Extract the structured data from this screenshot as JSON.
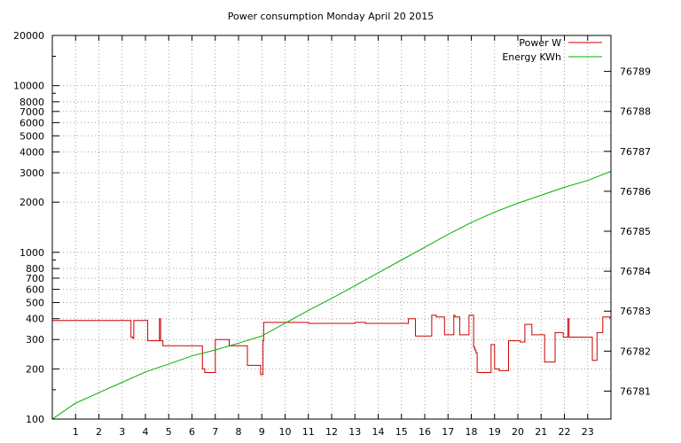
{
  "chart_data": {
    "type": "line",
    "title": "Power consumption Monday April 20 2015",
    "xlabel": "",
    "ylabel": "",
    "y2label": "",
    "xlim": [
      0,
      24
    ],
    "ylim": [
      100,
      20000
    ],
    "y_scale": "log",
    "y2lim": [
      76780.3,
      76789.9
    ],
    "y2_scale": "linear",
    "grid": true,
    "legend_position": "top-right",
    "x_ticks": [
      1,
      2,
      3,
      4,
      5,
      6,
      7,
      8,
      9,
      10,
      11,
      12,
      13,
      14,
      15,
      16,
      17,
      18,
      19,
      20,
      21,
      22,
      23
    ],
    "y_ticks": [
      100,
      200,
      300,
      400,
      500,
      600,
      700,
      800,
      1000,
      2000,
      3000,
      4000,
      5000,
      6000,
      7000,
      8000,
      10000,
      20000
    ],
    "y2_ticks": [
      76781,
      76782,
      76783,
      76784,
      76785,
      76786,
      76787,
      76788,
      76789
    ],
    "series": [
      {
        "name": "Power W",
        "color": "#cc0000",
        "axis": "y",
        "step": true,
        "x": [
          0,
          3.35,
          3.38,
          3.45,
          3.5,
          4.05,
          4.1,
          4.55,
          4.6,
          4.65,
          4.75,
          5.0,
          5.95,
          6.45,
          6.5,
          6.55,
          7.0,
          7.05,
          7.6,
          8.35,
          8.38,
          8.4,
          8.9,
          8.95,
          9.05,
          9.08,
          10.4,
          11.0,
          12.0,
          13.0,
          13.3,
          13.45,
          14.2,
          15.3,
          15.35,
          15.55,
          15.6,
          15.65,
          16.3,
          16.35,
          16.5,
          16.8,
          16.85,
          17.0,
          17.25,
          17.3,
          17.5,
          17.55,
          17.9,
          18.0,
          18.05,
          18.1,
          18.15,
          18.2,
          18.25,
          18.85,
          18.9,
          19.0,
          19.15,
          19.2,
          19.6,
          19.9,
          20.1,
          20.3,
          20.6,
          20.65,
          21.1,
          21.15,
          21.55,
          21.6,
          21.9,
          21.95,
          22.15,
          22.2,
          22.2,
          22.8,
          23.2,
          23.25,
          23.4,
          23.65,
          23.7,
          23.95
        ],
        "values": [
          390,
          390,
          310,
          305,
          390,
          390,
          295,
          295,
          400,
          295,
          275,
          275,
          275,
          200,
          200,
          190,
          300,
          300,
          275,
          275,
          210,
          210,
          210,
          185,
          295,
          380,
          380,
          375,
          375,
          380,
          380,
          375,
          375,
          400,
          400,
          400,
          315,
          315,
          420,
          420,
          410,
          410,
          320,
          320,
          420,
          410,
          320,
          320,
          420,
          420,
          420,
          270,
          260,
          250,
          190,
          280,
          280,
          200,
          200,
          195,
          295,
          295,
          290,
          370,
          320,
          320,
          320,
          220,
          220,
          330,
          330,
          310,
          400,
          390,
          310,
          310,
          225,
          225,
          330,
          410,
          410,
          400
        ]
      },
      {
        "name": "Energy KWh",
        "color": "#00b000",
        "axis": "y2",
        "step": false,
        "x": [
          0,
          1,
          2,
          3,
          4,
          5,
          6,
          7,
          8,
          9,
          10,
          11,
          12,
          13,
          14,
          15,
          16,
          17,
          18,
          19,
          20,
          21,
          22,
          23,
          24
        ],
        "values": [
          76780.3,
          76780.7,
          76780.96,
          76781.22,
          76781.48,
          76781.68,
          76781.88,
          76782.03,
          76782.2,
          76782.38,
          76782.7,
          76783.02,
          76783.32,
          76783.64,
          76783.96,
          76784.28,
          76784.6,
          76784.92,
          76785.22,
          76785.48,
          76785.7,
          76785.9,
          76786.1,
          76786.27,
          76786.5
        ]
      }
    ]
  }
}
